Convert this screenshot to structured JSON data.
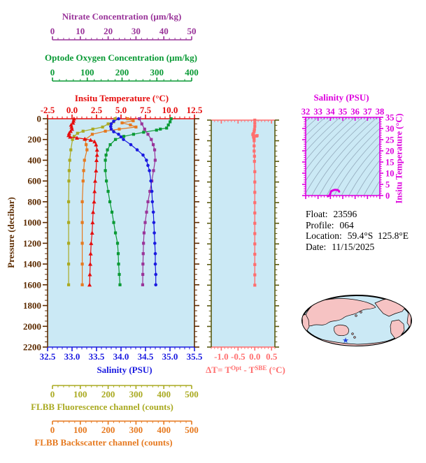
{
  "colors": {
    "temperature": "#e60d0d",
    "salinity": "#1a1ae0",
    "oxygen": "#0a9a35",
    "nitrate": "#993399",
    "fluorescence": "#aaaa22",
    "backscatter": "#e6791f",
    "pressure_axis": "#5c2b00",
    "delta_t": "#ff6f6f",
    "ts_magenta": "#dd00dd",
    "plot_background": "#cbe9f5",
    "contour_gray": "#93aabc",
    "map_land": "#f6c3c3",
    "map_ocean": "#cbe9f5",
    "map_outline": "#000000",
    "map_marker": "#2244dd"
  },
  "titles": {
    "nitrate": "Nitrate Concentration (μm/kg)",
    "oxygen": "Optode Oxygen Concentration (μm/kg)",
    "temperature": "Insitu Temperature (°C)",
    "salinity": "Salinity (PSU)",
    "fluorescence": "FLBB Fluorescence channel (counts)",
    "backscatter": "FLBB Backscatter channel (counts)",
    "pressure": "Pressure (decibar)",
    "ts_salinity": "Salinity (PSU)",
    "ts_temperature": "Insitu Temperature (°C)",
    "delta_t": {
      "prefix": "ΔT= T",
      "sup1": "Opt",
      "mid": " - T",
      "sup2": "SBE",
      "suffix": " (°C)"
    }
  },
  "float_info": {
    "float_label": "Float:",
    "float_value": "23596",
    "profile_label": "Profile:",
    "profile_value": "064",
    "location_label": "Location:",
    "location_value": "59.4°S  125.8°E",
    "date_label": "Date:",
    "date_value": "11/15/2025"
  },
  "chart_data": [
    {
      "id": "profile-panel",
      "type": "line",
      "ylabel": "Pressure (decibar)",
      "ylim": [
        0,
        2200
      ],
      "y_ticks": [
        0,
        200,
        400,
        600,
        800,
        1000,
        1200,
        1400,
        1600,
        1800,
        2000,
        2200
      ],
      "y_tick_labels": [
        "0",
        "200",
        "400",
        "600",
        "800",
        "1000",
        "1200",
        "1400",
        "1600",
        "1800",
        "2000",
        "2200"
      ],
      "grid": false,
      "series": [
        {
          "name": "fluorescence",
          "marker": "square",
          "span": "aux",
          "xlim": [
            0,
            500
          ],
          "x_ticks": [
            0,
            100,
            200,
            300,
            400,
            500
          ],
          "x_tick_labels": [
            "0",
            "100",
            "200",
            "300",
            "400",
            "500"
          ],
          "pressure": [
            0,
            30,
            50,
            80,
            100,
            120,
            140,
            170,
            200,
            300,
            400,
            500,
            600,
            800,
            1000,
            1200,
            1400,
            1600
          ],
          "values": [
            225,
            220,
            200,
            180,
            145,
            110,
            90,
            78,
            72,
            66,
            62,
            60,
            59,
            58,
            58,
            58,
            58,
            58
          ]
        },
        {
          "name": "backscatter",
          "marker": "square",
          "span": "aux",
          "xlim": [
            0,
            500
          ],
          "x_ticks": [
            0,
            100,
            200,
            300,
            400,
            500
          ],
          "x_tick_labels": [
            "0",
            "100",
            "200",
            "300",
            "400",
            "500"
          ],
          "pressure": [
            0,
            20,
            40,
            60,
            80,
            100,
            120,
            150,
            200,
            250,
            300,
            400,
            500,
            600,
            800,
            1000,
            1200,
            1400,
            1600
          ],
          "values": [
            270,
            290,
            250,
            280,
            300,
            240,
            190,
            143,
            118,
            121,
            124,
            115,
            112,
            110,
            107,
            107,
            107,
            107,
            107
          ]
        },
        {
          "name": "oxygen",
          "marker": "square",
          "span": "aux",
          "xlim": [
            0,
            400
          ],
          "x_ticks": [
            0,
            100,
            200,
            300,
            400
          ],
          "x_tick_labels": [
            "0",
            "100",
            "200",
            "300",
            "400"
          ],
          "pressure": [
            0,
            30,
            60,
            90,
            100,
            110,
            130,
            150,
            170,
            200,
            250,
            300,
            350,
            400,
            500,
            600,
            700,
            800,
            900,
            1000,
            1100,
            1200,
            1300,
            1400,
            1500,
            1600
          ],
          "values": [
            341,
            338,
            333,
            328,
            310,
            299,
            262,
            233,
            205,
            181,
            166,
            158,
            154,
            152,
            152,
            155,
            160,
            165,
            171,
            176,
            181,
            187,
            189,
            190,
            192,
            194
          ]
        },
        {
          "name": "nitrate",
          "marker": "square",
          "span": "aux",
          "xlim": [
            0,
            50
          ],
          "x_ticks": [
            0,
            10,
            20,
            30,
            40,
            50
          ],
          "x_tick_labels": [
            "0",
            "10",
            "20",
            "30",
            "40",
            "50"
          ],
          "pressure": [
            0,
            50,
            100,
            150,
            200,
            250,
            300,
            400,
            500,
            600,
            700,
            800,
            900,
            1000,
            1100,
            1200,
            1300,
            1400,
            1500,
            1600
          ],
          "values": [
            31.2,
            32.1,
            33.1,
            34.3,
            35.5,
            36.2,
            36.7,
            36.9,
            36.3,
            35.7,
            35.0,
            34.3,
            33.8,
            33.3,
            32.9,
            32.7,
            32.6,
            32.5,
            32.45,
            32.4
          ]
        },
        {
          "name": "salinity",
          "marker": "circle",
          "span": "main",
          "xlim": [
            32.5,
            35.5
          ],
          "x_ticks": [
            32.5,
            33.0,
            33.5,
            34.0,
            34.5,
            35.0,
            35.5
          ],
          "x_tick_labels": [
            "32.5",
            "33.0",
            "33.5",
            "34.0",
            "34.5",
            "35.0",
            "35.5"
          ],
          "pressure": [
            0,
            25,
            50,
            75,
            100,
            125,
            150,
            175,
            200,
            250,
            300,
            350,
            400,
            450,
            500,
            600,
            700,
            800,
            900,
            1000,
            1100,
            1200,
            1300,
            1400,
            1500,
            1600
          ],
          "values": [
            33.95,
            33.85,
            33.8,
            33.79,
            33.8,
            33.85,
            33.95,
            34.0,
            34.05,
            34.2,
            34.33,
            34.45,
            34.52,
            34.55,
            34.58,
            34.61,
            34.63,
            34.64,
            34.66,
            34.67,
            34.68,
            34.69,
            34.7,
            34.7,
            34.71,
            34.71
          ]
        },
        {
          "name": "temperature",
          "marker": "triangle",
          "span": "main",
          "xlim": [
            -2.5,
            12.5
          ],
          "x_ticks": [
            -2.5,
            0.0,
            2.5,
            5.0,
            7.5,
            10.0,
            12.5
          ],
          "x_tick_labels": [
            "-2.5",
            "0.0",
            "2.5",
            "5.0",
            "7.5",
            "10.0",
            "12.5"
          ],
          "pressure": [
            0,
            20,
            40,
            60,
            80,
            100,
            120,
            140,
            160,
            175,
            185,
            195,
            205,
            220,
            250,
            300,
            350,
            400,
            500,
            600,
            700,
            800,
            900,
            1000,
            1100,
            1200,
            1300,
            1400,
            1500,
            1600
          ],
          "values": [
            0.2,
            0.15,
            0.1,
            -0.1,
            -0.05,
            0.0,
            -0.15,
            -0.3,
            -0.35,
            -0.2,
            0.5,
            1.3,
            1.9,
            2.3,
            2.45,
            2.55,
            2.55,
            2.5,
            2.45,
            2.36,
            2.3,
            2.25,
            2.15,
            2.1,
            2.05,
            1.95,
            1.9,
            1.86,
            1.82,
            1.79
          ]
        }
      ]
    },
    {
      "id": "delta-t-panel",
      "type": "line",
      "xlabel": "ΔT= T^Opt - T^SBE (°C)",
      "xlim": [
        -1.3,
        0.6
      ],
      "x_ticks": [
        -1.0,
        -0.5,
        0.0,
        0.5
      ],
      "x_tick_labels": [
        "-1.0",
        "-0.5",
        "0.0",
        "0.5"
      ],
      "ylim": [
        0,
        2200
      ],
      "pressure": [
        0,
        30,
        60,
        90,
        110,
        130,
        140,
        150,
        155,
        160,
        170,
        180,
        200,
        250,
        300,
        350,
        400,
        500,
        600,
        700,
        800,
        900,
        1000,
        1100,
        1200,
        1300,
        1400,
        1500,
        1600
      ],
      "values": [
        0,
        0,
        0,
        -0.01,
        -0.02,
        -0.04,
        -0.06,
        0.07,
        0.05,
        -0.04,
        -0.03,
        -0.02,
        -0.02,
        -0.02,
        -0.02,
        -0.01,
        -0.01,
        0,
        0,
        0,
        0,
        0,
        0,
        0,
        0,
        0,
        0,
        0,
        0
      ]
    },
    {
      "id": "ts-panel",
      "type": "line",
      "xlabel": "Salinity (PSU)",
      "ylabel": "Insitu Temperature (°C)",
      "xlim": [
        32,
        38
      ],
      "x_ticks": [
        32,
        33,
        34,
        35,
        36,
        37,
        38
      ],
      "x_tick_labels": [
        "32",
        "33",
        "34",
        "35",
        "36",
        "37",
        "38"
      ],
      "ylim": [
        0,
        35
      ],
      "y_ticks": [
        0,
        5,
        10,
        15,
        20,
        25,
        30,
        35
      ],
      "y_tick_labels": [
        "0",
        "5",
        "10",
        "15",
        "20",
        "25",
        "30",
        "35"
      ],
      "isopycnal_contours": true,
      "salinity": [
        33.8,
        33.85,
        33.95,
        34.0,
        34.05,
        34.2,
        34.33,
        34.45,
        34.52,
        34.58,
        34.61,
        34.63,
        34.64,
        34.67,
        34.69,
        34.7,
        34.71
      ],
      "temperature": [
        -0.3,
        -0.2,
        0.2,
        1.0,
        1.9,
        2.3,
        2.55,
        2.55,
        2.5,
        2.45,
        2.36,
        2.3,
        2.25,
        2.1,
        1.95,
        1.86,
        1.79
      ]
    },
    {
      "id": "location-map",
      "type": "map",
      "projection": "ellipse-pacific-centered",
      "marker": {
        "lat_label": "59.4°S",
        "lon_label": "125.8°E"
      }
    }
  ]
}
